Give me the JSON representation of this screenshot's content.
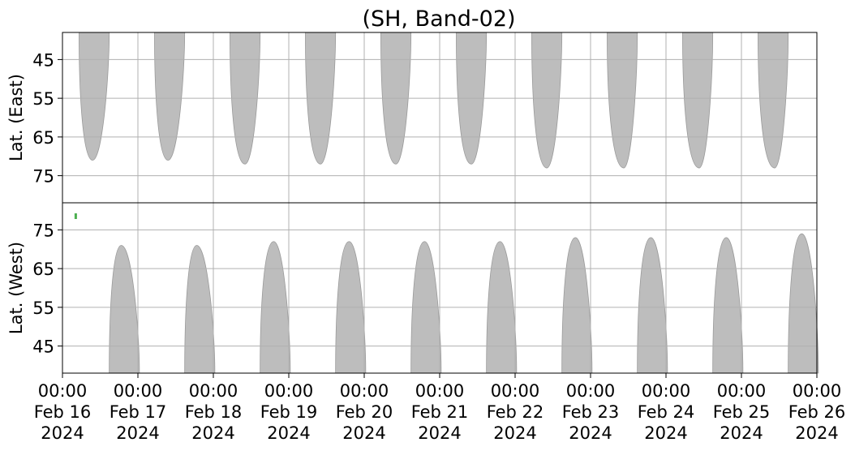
{
  "colors": {
    "swath": "#bdbdbd",
    "swath_edge": "#9a9a9a",
    "grid": "#b0b0b0",
    "mark": "#4caf50",
    "axis": "#000000"
  },
  "chart_data": {
    "type": "heatmap",
    "title": "(SH, Band-02)",
    "x_range": [
      "2024-02-16T00:00",
      "2024-02-26T00:00"
    ],
    "x_ticks": [
      {
        "time": "00:00",
        "date": "Feb 16",
        "year": "2024"
      },
      {
        "time": "00:00",
        "date": "Feb 17",
        "year": "2024"
      },
      {
        "time": "00:00",
        "date": "Feb 18",
        "year": "2024"
      },
      {
        "time": "00:00",
        "date": "Feb 19",
        "year": "2024"
      },
      {
        "time": "00:00",
        "date": "Feb 20",
        "year": "2024"
      },
      {
        "time": "00:00",
        "date": "Feb 21",
        "year": "2024"
      },
      {
        "time": "00:00",
        "date": "Feb 22",
        "year": "2024"
      },
      {
        "time": "00:00",
        "date": "Feb 23",
        "year": "2024"
      },
      {
        "time": "00:00",
        "date": "Feb 24",
        "year": "2024"
      },
      {
        "time": "00:00",
        "date": "Feb 25",
        "year": "2024"
      },
      {
        "time": "00:00",
        "date": "Feb 26",
        "year": "2024"
      }
    ],
    "grid": true,
    "panels": [
      {
        "ylabel": "Lat. (East)",
        "ylim": [
          38,
          82
        ],
        "y_inverted": true,
        "yticks": [
          "45",
          "55",
          "65",
          "75"
        ],
        "ytick_values": [
          45,
          55,
          65,
          75
        ],
        "swaths": [
          {
            "start_day": 0.22,
            "end_day": 0.62,
            "peak_day": 0.4,
            "peak_lat": 71
          },
          {
            "start_day": 1.22,
            "end_day": 1.62,
            "peak_day": 1.4,
            "peak_lat": 71
          },
          {
            "start_day": 2.22,
            "end_day": 2.62,
            "peak_day": 2.42,
            "peak_lat": 72
          },
          {
            "start_day": 3.22,
            "end_day": 3.62,
            "peak_day": 3.42,
            "peak_lat": 72
          },
          {
            "start_day": 4.22,
            "end_day": 4.62,
            "peak_day": 4.42,
            "peak_lat": 72
          },
          {
            "start_day": 5.22,
            "end_day": 5.62,
            "peak_day": 5.42,
            "peak_lat": 72
          },
          {
            "start_day": 6.22,
            "end_day": 6.62,
            "peak_day": 6.42,
            "peak_lat": 73
          },
          {
            "start_day": 7.22,
            "end_day": 7.62,
            "peak_day": 7.44,
            "peak_lat": 73
          },
          {
            "start_day": 8.22,
            "end_day": 8.62,
            "peak_day": 8.44,
            "peak_lat": 73
          },
          {
            "start_day": 9.22,
            "end_day": 9.62,
            "peak_day": 9.44,
            "peak_lat": 73
          }
        ]
      },
      {
        "ylabel": "Lat. (West)",
        "ylim": [
          38,
          82
        ],
        "y_inverted": false,
        "yticks": [
          "75",
          "65",
          "55",
          "45"
        ],
        "ytick_values": [
          75,
          65,
          55,
          45
        ],
        "swaths": [
          {
            "start_day": 0.62,
            "end_day": 1.02,
            "peak_day": 0.78,
            "peak_lat": 71
          },
          {
            "start_day": 1.62,
            "end_day": 2.02,
            "peak_day": 1.78,
            "peak_lat": 71
          },
          {
            "start_day": 2.62,
            "end_day": 3.02,
            "peak_day": 2.8,
            "peak_lat": 72
          },
          {
            "start_day": 3.62,
            "end_day": 4.02,
            "peak_day": 3.8,
            "peak_lat": 72
          },
          {
            "start_day": 4.62,
            "end_day": 5.02,
            "peak_day": 4.8,
            "peak_lat": 72
          },
          {
            "start_day": 5.62,
            "end_day": 6.02,
            "peak_day": 5.8,
            "peak_lat": 72
          },
          {
            "start_day": 6.62,
            "end_day": 7.02,
            "peak_day": 6.8,
            "peak_lat": 73
          },
          {
            "start_day": 7.62,
            "end_day": 8.02,
            "peak_day": 7.8,
            "peak_lat": 73
          },
          {
            "start_day": 8.62,
            "end_day": 9.02,
            "peak_day": 8.8,
            "peak_lat": 73
          },
          {
            "start_day": 9.62,
            "end_day": 10.02,
            "peak_day": 9.8,
            "peak_lat": 74
          }
        ]
      }
    ]
  }
}
